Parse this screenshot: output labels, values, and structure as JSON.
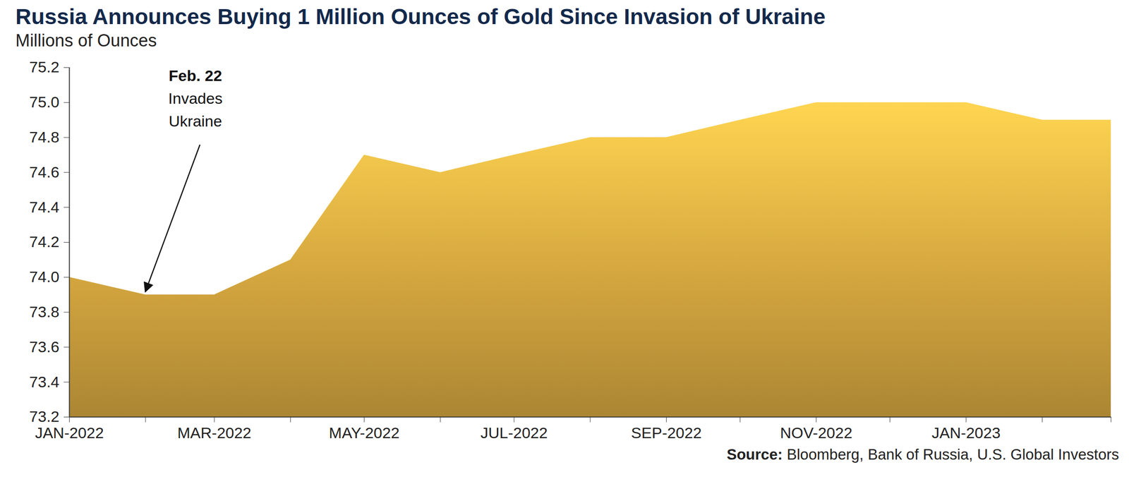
{
  "chart_data": {
    "type": "area",
    "title": "Russia Announces Buying 1 Million Ounces of Gold Since Invasion of Ukraine",
    "subtitle": "Millions of Ounces",
    "source": "Source: Bloomberg, Bank of Russia, U.S. Global Investors",
    "x": [
      "2022-01",
      "2022-02",
      "2022-03",
      "2022-04",
      "2022-05",
      "2022-06",
      "2022-07",
      "2022-08",
      "2022-09",
      "2022-10",
      "2022-11",
      "2022-12",
      "2023-01",
      "2023-02",
      "2023-03"
    ],
    "values": [
      74.0,
      73.9,
      73.9,
      74.1,
      74.7,
      74.6,
      74.7,
      74.8,
      74.8,
      74.9,
      75.0,
      75.0,
      75.0,
      74.9,
      74.9
    ],
    "color": "#d4a63f",
    "xlim": [
      "2022-01",
      "2023-03"
    ],
    "xticks": [
      {
        "value": "2022-01",
        "label": "JAN-2022"
      },
      {
        "value": "2022-03",
        "label": "MAR-2022"
      },
      {
        "value": "2022-05",
        "label": "MAY-2022"
      },
      {
        "value": "2022-07",
        "label": "JUL-2022"
      },
      {
        "value": "2022-09",
        "label": "SEP-2022"
      },
      {
        "value": "2022-11",
        "label": "NOV-2022"
      },
      {
        "value": "2023-01",
        "label": "JAN-2023"
      }
    ],
    "ylim": [
      73.2,
      75.2
    ],
    "yticks": [
      73.2,
      73.4,
      73.6,
      73.8,
      {
        "value": 74,
        "label": "74.0"
      },
      74.2,
      74.4,
      74.6,
      74.8,
      {
        "value": 75,
        "label": "75.0"
      },
      75.2
    ],
    "grid": false,
    "annotations": [
      {
        "x": "2022-02",
        "text": [
          "Feb. 22",
          "Invades",
          "Ukraine"
        ]
      }
    ]
  }
}
